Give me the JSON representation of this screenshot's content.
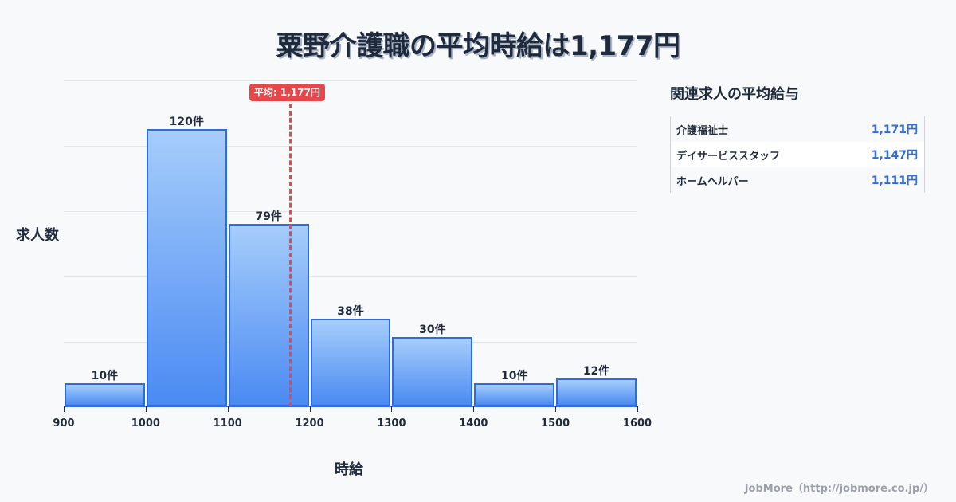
{
  "title": "粟野介護職の平均時給は1,177円",
  "average_badge": "平均: 1,177円",
  "y_axis_label": "求人数",
  "x_axis_label": "時給",
  "side_panel": {
    "title": "関連求人の平均給与",
    "rows": [
      {
        "name": "介護福祉士",
        "value": "1,171円"
      },
      {
        "name": "デイサービススタッフ",
        "value": "1,147円"
      },
      {
        "name": "ホームヘルパー",
        "value": "1,111円"
      }
    ]
  },
  "footer": "JobMore（http://jobmore.co.jp/）",
  "colors": {
    "bar_top": "#a6cdfb",
    "bar_bottom": "#4a8af2",
    "bar_border": "#2f6be0",
    "average_line": "#e8474a",
    "value_text": "#2f6be0",
    "background": "#f8f9fb"
  },
  "chart_data": {
    "type": "bar",
    "title": "粟野介護職の平均時給は1,177円",
    "xlabel": "時給",
    "ylabel": "求人数",
    "bins": [
      [
        900,
        1000
      ],
      [
        1000,
        1100
      ],
      [
        1100,
        1200
      ],
      [
        1200,
        1300
      ],
      [
        1300,
        1400
      ],
      [
        1400,
        1500
      ],
      [
        1500,
        1600
      ]
    ],
    "categories": [
      "900-1000",
      "1000-1100",
      "1100-1200",
      "1200-1300",
      "1300-1400",
      "1400-1500",
      "1500-1600"
    ],
    "values": [
      10,
      120,
      79,
      38,
      30,
      10,
      12
    ],
    "value_labels": [
      "10件",
      "120件",
      "79件",
      "38件",
      "30件",
      "10件",
      "12件"
    ],
    "x_ticks": [
      "900",
      "1000",
      "1100",
      "1200",
      "1300",
      "1400",
      "1500",
      "1600"
    ],
    "xlim": [
      900,
      1600
    ],
    "ylim": [
      0,
      141
    ],
    "grid": true,
    "average": {
      "value": 1177,
      "label": "平均: 1,177円"
    }
  }
}
